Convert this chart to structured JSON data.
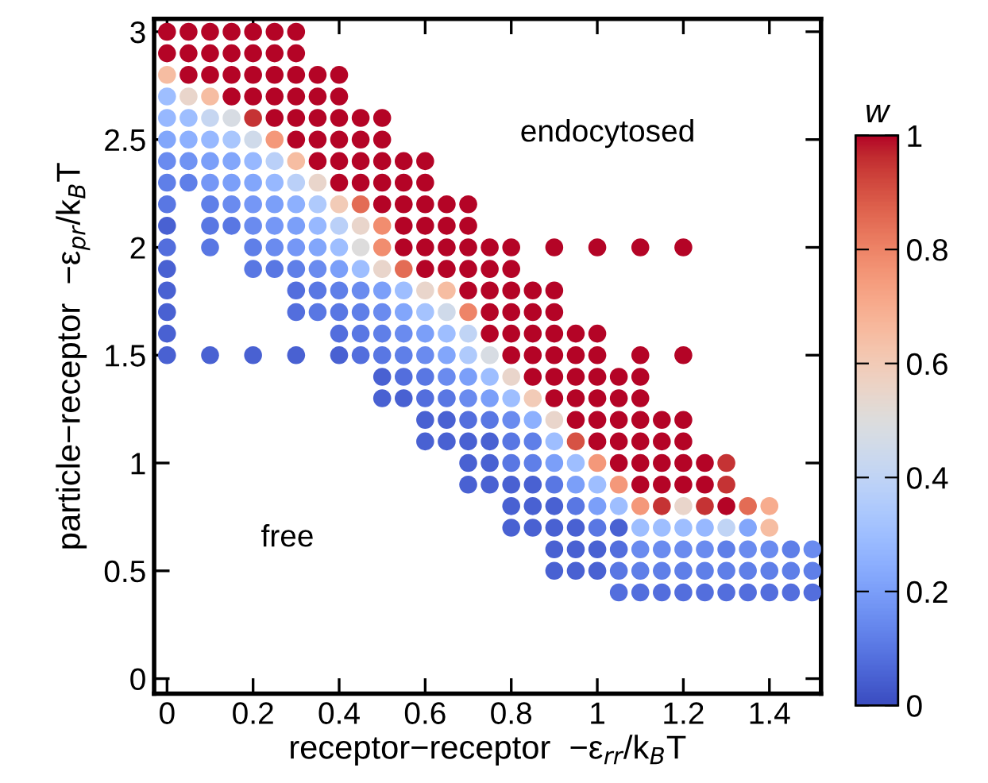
{
  "chart_data": {
    "type": "scatter",
    "xlabel": "receptor−receptor  −ε$_{rr}$/k$_{B}$T",
    "ylabel": "particle−receptor  −ε$_{pr}$/k$_{B}$T",
    "clabel": "w",
    "xlim": [
      -0.03,
      1.52
    ],
    "ylim": [
      -0.07,
      3.06
    ],
    "xticks": [
      0,
      0.2,
      0.4,
      0.6,
      0.8,
      1,
      1.2,
      1.4
    ],
    "yticks": [
      0,
      0.5,
      1,
      1.5,
      2,
      2.5,
      3
    ],
    "clim": [
      0,
      1
    ],
    "cticks": [
      0,
      0.2,
      0.4,
      0.6,
      0.8,
      1
    ],
    "marker": "circle",
    "annotations": [
      "endocytosed",
      "free"
    ],
    "x": [
      0,
      0.05,
      0.1,
      0.15,
      0.2,
      0.25,
      0.3,
      0,
      0.05,
      0.1,
      0.15,
      0.2,
      0.25,
      0.3,
      0,
      0.05,
      0.1,
      0.15,
      0.2,
      0.25,
      0.3,
      0.35,
      0.4,
      0,
      0.05,
      0.1,
      0.15,
      0.2,
      0.25,
      0.3,
      0.35,
      0.4,
      0,
      0.05,
      0.1,
      0.15,
      0.2,
      0.25,
      0.3,
      0.35,
      0.4,
      0.45,
      0.5,
      0,
      0.05,
      0.1,
      0.15,
      0.2,
      0.25,
      0.3,
      0.35,
      0.4,
      0.45,
      0.5,
      0,
      0.05,
      0.1,
      0.15,
      0.2,
      0.25,
      0.3,
      0.35,
      0.4,
      0.45,
      0.5,
      0.55,
      0.6,
      0,
      0.05,
      0.1,
      0.15,
      0.2,
      0.25,
      0.3,
      0.35,
      0.4,
      0.45,
      0.5,
      0.55,
      0.6,
      0,
      0.1,
      0.15,
      0.2,
      0.25,
      0.3,
      0.35,
      0.4,
      0.45,
      0.5,
      0.55,
      0.6,
      0.65,
      0.7,
      0,
      0.1,
      0.15,
      0.2,
      0.25,
      0.3,
      0.35,
      0.4,
      0.45,
      0.5,
      0.55,
      0.6,
      0.65,
      0.7,
      0,
      0.1,
      0.2,
      0.25,
      0.3,
      0.35,
      0.4,
      0.45,
      0.5,
      0.55,
      0.6,
      0.65,
      0.7,
      0.75,
      0.8,
      0.9,
      1.0,
      1.1,
      1.2,
      0,
      0.2,
      0.25,
      0.3,
      0.35,
      0.4,
      0.45,
      0.5,
      0.55,
      0.6,
      0.65,
      0.7,
      0.75,
      0.8,
      0,
      0.3,
      0.35,
      0.4,
      0.45,
      0.5,
      0.55,
      0.6,
      0.65,
      0.7,
      0.75,
      0.8,
      0.85,
      0.9,
      0,
      0.3,
      0.35,
      0.4,
      0.45,
      0.5,
      0.55,
      0.6,
      0.65,
      0.7,
      0.75,
      0.8,
      0.85,
      0.9,
      0,
      0.4,
      0.45,
      0.5,
      0.55,
      0.6,
      0.65,
      0.7,
      0.75,
      0.8,
      0.85,
      0.9,
      0.95,
      1.0,
      0,
      0.1,
      0.2,
      0.3,
      0.4,
      0.45,
      0.5,
      0.55,
      0.6,
      0.65,
      0.7,
      0.75,
      0.8,
      0.85,
      0.9,
      0.95,
      1.0,
      1.1,
      1.2,
      0.5,
      0.55,
      0.6,
      0.65,
      0.7,
      0.75,
      0.8,
      0.85,
      0.9,
      0.95,
      1.0,
      1.05,
      1.1,
      0.5,
      0.55,
      0.6,
      0.65,
      0.7,
      0.75,
      0.8,
      0.85,
      0.9,
      0.95,
      1.0,
      1.05,
      1.1,
      0.6,
      0.65,
      0.7,
      0.75,
      0.8,
      0.85,
      0.9,
      0.95,
      1.0,
      1.05,
      1.1,
      1.15,
      1.2,
      0.6,
      0.65,
      0.7,
      0.75,
      0.8,
      0.85,
      0.9,
      0.95,
      1.0,
      1.05,
      1.1,
      1.15,
      1.2,
      0.7,
      0.75,
      0.8,
      0.85,
      0.9,
      0.95,
      1.0,
      1.05,
      1.1,
      1.15,
      1.2,
      1.25,
      1.3,
      0.7,
      0.75,
      0.8,
      0.85,
      0.9,
      0.95,
      1.0,
      1.05,
      1.1,
      1.15,
      1.2,
      1.25,
      1.3,
      0.8,
      0.85,
      0.9,
      0.95,
      1.0,
      1.05,
      1.1,
      1.15,
      1.2,
      1.25,
      1.3,
      1.35,
      1.4,
      0.8,
      0.85,
      0.9,
      0.95,
      1.0,
      1.05,
      1.1,
      1.15,
      1.2,
      1.25,
      1.3,
      1.35,
      1.4,
      0.9,
      0.95,
      1.0,
      1.05,
      1.1,
      1.15,
      1.2,
      1.25,
      1.3,
      1.35,
      1.4,
      1.45,
      1.5,
      0.9,
      0.95,
      1.0,
      1.05,
      1.1,
      1.15,
      1.2,
      1.25,
      1.3,
      1.35,
      1.4,
      1.45,
      1.5,
      1.05,
      1.1,
      1.15,
      1.2,
      1.25,
      1.3,
      1.35,
      1.4,
      1.45,
      1.5
    ],
    "values": [
      3,
      3,
      3,
      3,
      3,
      3,
      3,
      2.9,
      2.9,
      2.9,
      2.9,
      2.9,
      2.9,
      2.9,
      2.8,
      2.8,
      2.8,
      2.8,
      2.8,
      2.8,
      2.8,
      2.8,
      2.8,
      2.7,
      2.7,
      2.7,
      2.7,
      2.7,
      2.7,
      2.7,
      2.7,
      2.7,
      2.6,
      2.6,
      2.6,
      2.6,
      2.6,
      2.6,
      2.6,
      2.6,
      2.6,
      2.6,
      2.6,
      2.5,
      2.5,
      2.5,
      2.5,
      2.5,
      2.5,
      2.5,
      2.5,
      2.5,
      2.5,
      2.5,
      2.4,
      2.4,
      2.4,
      2.4,
      2.4,
      2.4,
      2.4,
      2.4,
      2.4,
      2.4,
      2.4,
      2.4,
      2.4,
      2.3,
      2.3,
      2.3,
      2.3,
      2.3,
      2.3,
      2.3,
      2.3,
      2.3,
      2.3,
      2.3,
      2.3,
      2.3,
      2.2,
      2.2,
      2.2,
      2.2,
      2.2,
      2.2,
      2.2,
      2.2,
      2.2,
      2.2,
      2.2,
      2.2,
      2.2,
      2.2,
      2.1,
      2.1,
      2.1,
      2.1,
      2.1,
      2.1,
      2.1,
      2.1,
      2.1,
      2.1,
      2.1,
      2.1,
      2.1,
      2.1,
      2,
      2,
      2,
      2,
      2,
      2,
      2,
      2,
      2,
      2,
      2,
      2,
      2,
      2,
      2,
      2,
      2,
      2,
      2,
      1.9,
      1.9,
      1.9,
      1.9,
      1.9,
      1.9,
      1.9,
      1.9,
      1.9,
      1.9,
      1.9,
      1.9,
      1.9,
      1.9,
      1.8,
      1.8,
      1.8,
      1.8,
      1.8,
      1.8,
      1.8,
      1.8,
      1.8,
      1.8,
      1.8,
      1.8,
      1.8,
      1.8,
      1.7,
      1.7,
      1.7,
      1.7,
      1.7,
      1.7,
      1.7,
      1.7,
      1.7,
      1.7,
      1.7,
      1.7,
      1.7,
      1.7,
      1.6,
      1.6,
      1.6,
      1.6,
      1.6,
      1.6,
      1.6,
      1.6,
      1.6,
      1.6,
      1.6,
      1.6,
      1.6,
      1.6,
      1.5,
      1.5,
      1.5,
      1.5,
      1.5,
      1.5,
      1.5,
      1.5,
      1.5,
      1.5,
      1.5,
      1.5,
      1.5,
      1.5,
      1.5,
      1.5,
      1.5,
      1.5,
      1.5,
      1.4,
      1.4,
      1.4,
      1.4,
      1.4,
      1.4,
      1.4,
      1.4,
      1.4,
      1.4,
      1.4,
      1.4,
      1.4,
      1.3,
      1.3,
      1.3,
      1.3,
      1.3,
      1.3,
      1.3,
      1.3,
      1.3,
      1.3,
      1.3,
      1.3,
      1.3,
      1.2,
      1.2,
      1.2,
      1.2,
      1.2,
      1.2,
      1.2,
      1.2,
      1.2,
      1.2,
      1.2,
      1.2,
      1.2,
      1.1,
      1.1,
      1.1,
      1.1,
      1.1,
      1.1,
      1.1,
      1.1,
      1.1,
      1.1,
      1.1,
      1.1,
      1.1,
      1,
      1,
      1,
      1,
      1,
      1,
      1,
      1,
      1,
      1,
      1,
      1,
      1,
      0.9,
      0.9,
      0.9,
      0.9,
      0.9,
      0.9,
      0.9,
      0.9,
      0.9,
      0.9,
      0.9,
      0.9,
      0.9,
      0.8,
      0.8,
      0.8,
      0.8,
      0.8,
      0.8,
      0.8,
      0.8,
      0.8,
      0.8,
      0.8,
      0.8,
      0.8,
      0.7,
      0.7,
      0.7,
      0.7,
      0.7,
      0.7,
      0.7,
      0.7,
      0.7,
      0.7,
      0.7,
      0.7,
      0.7,
      0.6,
      0.6,
      0.6,
      0.6,
      0.6,
      0.6,
      0.6,
      0.6,
      0.6,
      0.6,
      0.6,
      0.6,
      0.6,
      0.5,
      0.5,
      0.5,
      0.5,
      0.5,
      0.5,
      0.5,
      0.5,
      0.5,
      0.5,
      0.5,
      0.5,
      0.5,
      0.4,
      0.4,
      0.4,
      0.4,
      0.4,
      0.4,
      0.4,
      0.4,
      0.4,
      0.4
    ],
    "cvalues": [
      1,
      1,
      1,
      1,
      1,
      1,
      1,
      1,
      1,
      1,
      1,
      1,
      1,
      1,
      0.65,
      1,
      1,
      1,
      1,
      1,
      1,
      1,
      1,
      0.3,
      0.55,
      0.65,
      1,
      1,
      1,
      1,
      1,
      1,
      0.28,
      0.3,
      0.42,
      0.48,
      0.95,
      1,
      1,
      1,
      1,
      1,
      1,
      0.22,
      0.25,
      0.28,
      0.33,
      0.45,
      0.75,
      1,
      1,
      1,
      1,
      1,
      0.15,
      0.17,
      0.2,
      0.22,
      0.28,
      0.38,
      0.65,
      1,
      1,
      1,
      1,
      1,
      1,
      0.12,
      0.12,
      0.18,
      0.2,
      0.22,
      0.28,
      0.38,
      0.55,
      1,
      1,
      1,
      1,
      1,
      0.1,
      0.12,
      0.15,
      0.18,
      0.2,
      0.25,
      0.35,
      0.6,
      0.85,
      1,
      1,
      1,
      1,
      1,
      0.05,
      0.1,
      0.1,
      0.15,
      0.18,
      0.2,
      0.28,
      0.38,
      0.55,
      0.78,
      1,
      1,
      1,
      1,
      0.08,
      0.1,
      0.12,
      0.15,
      0.18,
      0.22,
      0.3,
      0.5,
      0.78,
      1,
      1,
      1,
      1,
      1,
      1,
      1,
      1,
      1,
      1,
      0.05,
      0.1,
      0.1,
      0.12,
      0.15,
      0.2,
      0.3,
      0.55,
      0.85,
      1,
      1,
      1,
      1,
      1,
      0.05,
      0.08,
      0.1,
      0.12,
      0.15,
      0.2,
      0.3,
      0.55,
      0.65,
      1,
      1,
      1,
      1,
      1,
      0.05,
      0.08,
      0.1,
      0.1,
      0.12,
      0.15,
      0.22,
      0.32,
      0.45,
      0.8,
      1,
      1,
      1,
      1,
      0.05,
      0.08,
      0.1,
      0.12,
      0.15,
      0.2,
      0.3,
      0.4,
      1,
      1,
      1,
      1,
      1,
      1,
      0.05,
      0.05,
      0.05,
      0.05,
      0.05,
      0.08,
      0.1,
      0.12,
      0.15,
      0.22,
      0.35,
      0.48,
      1,
      1,
      1,
      1,
      1,
      1,
      1,
      0.05,
      0.08,
      0.1,
      0.15,
      0.2,
      0.3,
      0.55,
      1,
      1,
      1,
      1,
      1,
      1,
      0.05,
      0.05,
      0.08,
      0.1,
      0.15,
      0.2,
      0.3,
      0.6,
      1,
      1,
      1,
      1,
      1,
      0.05,
      0.05,
      0.08,
      0.1,
      0.15,
      0.25,
      0.55,
      1,
      1,
      1,
      1,
      1,
      1,
      0.05,
      0.05,
      0.05,
      0.05,
      0.1,
      0.12,
      0.3,
      0.9,
      1,
      1,
      1,
      1,
      1,
      0.05,
      0.05,
      0.1,
      0.12,
      0.2,
      0.3,
      0.75,
      1,
      1,
      1,
      1,
      1,
      0.95,
      0.05,
      0.05,
      0.05,
      0.05,
      0.1,
      0.2,
      0.3,
      0.75,
      1,
      1,
      1,
      1,
      0.95,
      0.05,
      0.05,
      0.05,
      0.1,
      0.2,
      0.3,
      0.75,
      0.95,
      0.55,
      0.95,
      1,
      0.85,
      0.7,
      0.05,
      0.05,
      0.05,
      0.05,
      0.1,
      0.05,
      0.3,
      0.3,
      0.3,
      0.28,
      0.4,
      0.22,
      0.65,
      0.05,
      0.05,
      0.05,
      0.08,
      0.15,
      0.15,
      0.15,
      0.15,
      0.12,
      0.15,
      0.15,
      0.12,
      0.15,
      0.05,
      0.05,
      0.05,
      0.1,
      0.12,
      0.12,
      0.12,
      0.12,
      0.12,
      0.12,
      0.12,
      0.12,
      0.12,
      0.08,
      0.08,
      0.08,
      0.08,
      0.08,
      0.08,
      0.08,
      0.08,
      0.08,
      0.08
    ]
  }
}
